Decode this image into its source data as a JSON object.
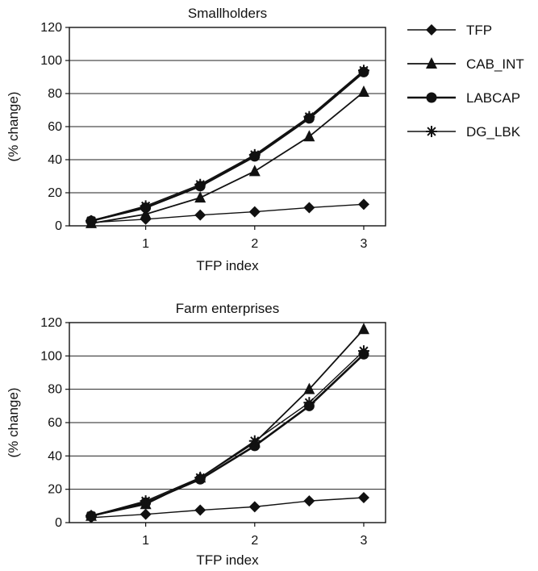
{
  "legend": [
    {
      "key": "TFP",
      "label": "TFP",
      "marker": "diamond"
    },
    {
      "key": "CAB_INT",
      "label": "CAB_INT",
      "marker": "triangle"
    },
    {
      "key": "LABCAP",
      "label": "LABCAP",
      "marker": "circle"
    },
    {
      "key": "DG_LBK",
      "label": "DG_LBK",
      "marker": "asterisk"
    }
  ],
  "chart_data": [
    {
      "type": "line",
      "title": "Smallholders",
      "xlabel": "TFP index",
      "ylabel": "(% change)",
      "x": [
        0.5,
        1.0,
        1.5,
        2.0,
        2.5,
        3.0
      ],
      "xticks": [
        1,
        2,
        3
      ],
      "xlim": [
        0.3,
        3.2
      ],
      "ylim": [
        0,
        120
      ],
      "yticks": [
        0,
        20,
        40,
        60,
        80,
        100,
        120
      ],
      "grid": "horizontal",
      "series": [
        {
          "name": "TFP",
          "values": [
            2,
            4,
            6.5,
            8.5,
            11,
            13
          ]
        },
        {
          "name": "CAB_INT",
          "values": [
            1.5,
            7,
            17,
            33,
            54,
            81
          ]
        },
        {
          "name": "LABCAP",
          "values": [
            3,
            11,
            24,
            42,
            65,
            93
          ]
        },
        {
          "name": "DG_LBK",
          "values": [
            3,
            12,
            25,
            43,
            66,
            94
          ]
        }
      ]
    },
    {
      "type": "line",
      "title": "Farm enterprises",
      "xlabel": "TFP index",
      "ylabel": "(% change)",
      "x": [
        0.5,
        1.0,
        1.5,
        2.0,
        2.5,
        3.0
      ],
      "xticks": [
        1,
        2,
        3
      ],
      "xlim": [
        0.3,
        3.2
      ],
      "ylim": [
        0,
        120
      ],
      "yticks": [
        0,
        20,
        40,
        60,
        80,
        100,
        120
      ],
      "grid": "horizontal",
      "series": [
        {
          "name": "TFP",
          "values": [
            3,
            5,
            7.5,
            9.5,
            13,
            15
          ]
        },
        {
          "name": "CAB_INT",
          "values": [
            4,
            11,
            27,
            48,
            80,
            116
          ]
        },
        {
          "name": "LABCAP",
          "values": [
            4,
            12,
            26,
            46,
            70,
            101
          ]
        },
        {
          "name": "DG_LBK",
          "values": [
            4,
            13,
            27,
            49,
            72,
            103
          ]
        }
      ]
    }
  ]
}
